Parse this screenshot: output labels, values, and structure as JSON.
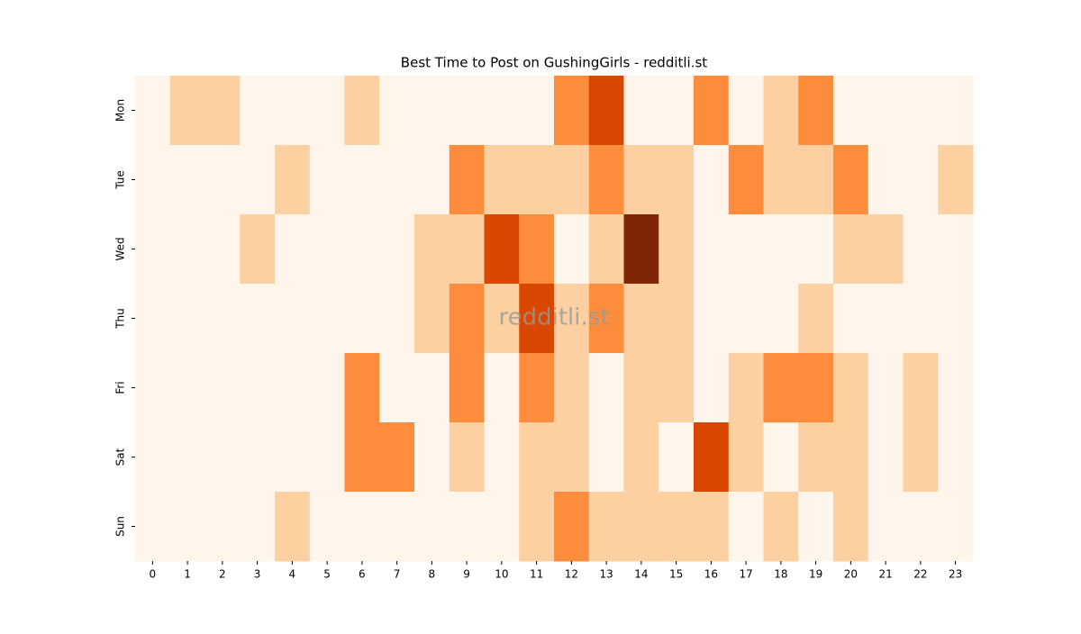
{
  "chart_data": {
    "type": "heatmap",
    "title": "Best Time to Post on GushingGirls - redditli.st",
    "watermark": "redditli.st",
    "x": [
      "0",
      "1",
      "2",
      "3",
      "4",
      "5",
      "6",
      "7",
      "8",
      "9",
      "10",
      "11",
      "12",
      "13",
      "14",
      "15",
      "16",
      "17",
      "18",
      "19",
      "20",
      "21",
      "22",
      "23"
    ],
    "y": [
      "Mon",
      "Tue",
      "Wed",
      "Thu",
      "Fri",
      "Sat",
      "Sun"
    ],
    "values": [
      [
        0,
        1,
        1,
        0,
        0,
        0,
        1,
        0,
        0,
        0,
        0,
        0,
        2,
        3,
        0,
        0,
        2,
        0,
        1,
        2,
        0,
        0,
        0,
        0
      ],
      [
        0,
        0,
        0,
        0,
        1,
        0,
        0,
        0,
        0,
        2,
        1,
        1,
        1,
        2,
        1,
        1,
        0,
        2,
        1,
        1,
        2,
        0,
        0,
        1
      ],
      [
        0,
        0,
        0,
        1,
        0,
        0,
        0,
        0,
        1,
        1,
        3,
        2,
        0,
        1,
        4,
        1,
        0,
        0,
        0,
        0,
        1,
        1,
        0,
        0
      ],
      [
        0,
        0,
        0,
        0,
        0,
        0,
        0,
        0,
        1,
        2,
        1,
        3,
        1,
        2,
        1,
        1,
        0,
        0,
        0,
        1,
        0,
        0,
        0,
        0
      ],
      [
        0,
        0,
        0,
        0,
        0,
        0,
        2,
        0,
        0,
        2,
        0,
        2,
        1,
        0,
        1,
        1,
        0,
        1,
        2,
        2,
        1,
        0,
        1,
        0
      ],
      [
        0,
        0,
        0,
        0,
        0,
        0,
        2,
        2,
        0,
        1,
        0,
        1,
        1,
        0,
        1,
        0,
        3,
        1,
        0,
        1,
        1,
        0,
        1,
        0
      ],
      [
        0,
        0,
        0,
        0,
        1,
        0,
        0,
        0,
        0,
        0,
        0,
        1,
        2,
        1,
        1,
        1,
        1,
        0,
        1,
        0,
        1,
        0,
        0,
        0
      ]
    ],
    "vlim": [
      0,
      4
    ],
    "colors": [
      "#fff5eb",
      "#fdd0a2",
      "#fd8d3c",
      "#d94801",
      "#7f2704"
    ]
  }
}
